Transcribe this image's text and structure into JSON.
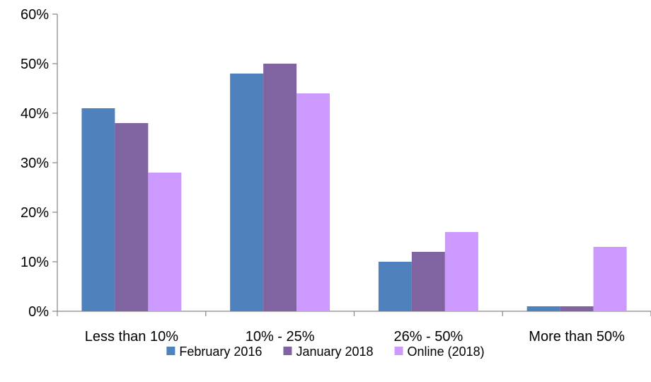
{
  "chart_data": {
    "type": "bar",
    "title": "",
    "xlabel": "",
    "ylabel": "",
    "categories": [
      "Less than 10%",
      "10% - 25%",
      "26% - 50%",
      "More than 50%"
    ],
    "series": [
      {
        "name": "February 2016",
        "values": [
          41,
          48,
          10,
          1
        ],
        "color": "#4F81BD"
      },
      {
        "name": "January 2018",
        "values": [
          38,
          50,
          12,
          1
        ],
        "color": "#8064A2"
      },
      {
        "name": "Online (2018)",
        "values": [
          28,
          44,
          16,
          13
        ],
        "color": "#CC99FF"
      }
    ],
    "ylim": [
      0,
      60
    ],
    "yticks": [
      0,
      10,
      20,
      30,
      40,
      50,
      60
    ],
    "ytick_labels": [
      "0%",
      "10%",
      "20%",
      "30%",
      "40%",
      "50%",
      "60%"
    ],
    "grid": false,
    "legend_position": "bottom"
  }
}
